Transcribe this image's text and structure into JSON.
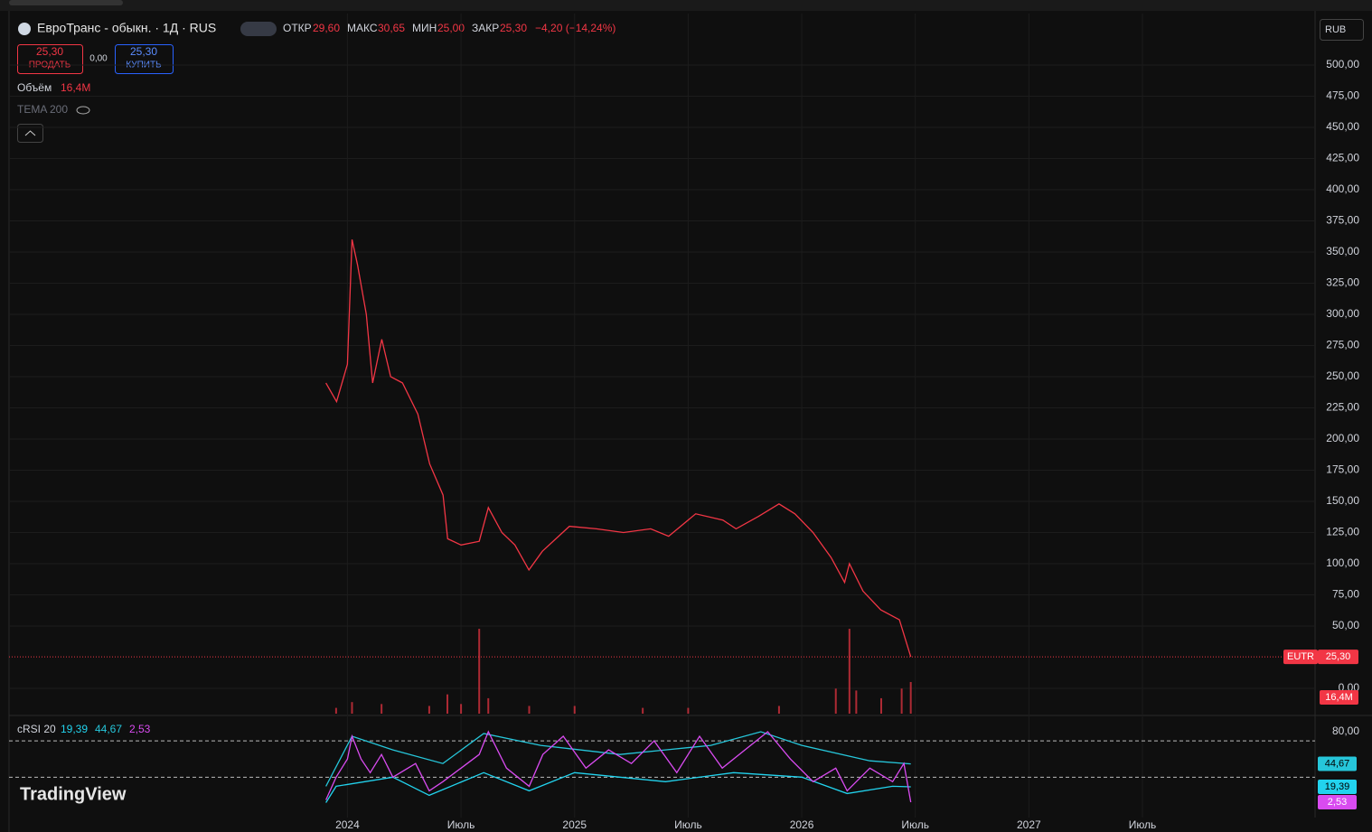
{
  "header": {
    "title": "ЕвроТранс - обыкн. · 1Д · RUS",
    "open_label": "ОТКР",
    "open": "29,60",
    "high_label": "МАКС",
    "high": "30,65",
    "low_label": "МИН",
    "low": "25,00",
    "close_label": "ЗАКР",
    "close": "25,30",
    "change": "−4,20 (−14,24%)"
  },
  "sell": {
    "price": "25,30",
    "label": "ПРОДАТЬ"
  },
  "spread": "0,00",
  "buy": {
    "price": "25,30",
    "label": "КУПИТЬ"
  },
  "currency": "RUB",
  "volume_legend": {
    "label": "Объём",
    "value": "16,4M"
  },
  "tema": "TEMA 200",
  "brand": "TradingView",
  "time_axis": {
    "xlim": [
      2022.51,
      2028.26
    ],
    "xticks": [
      2024,
      {
        "value": 2024.5,
        "label": "Июль"
      },
      2025,
      {
        "value": 2025.5,
        "label": "Июль"
      },
      2026,
      {
        "value": 2026.5,
        "label": "Июль"
      },
      2027,
      {
        "value": 2027.5,
        "label": "Июль"
      }
    ]
  },
  "chart_data": [
    {
      "type": "line",
      "x": [
        2023.905,
        2023.952,
        2024.0,
        2024.02,
        2024.044,
        2024.083,
        2024.111,
        2024.151,
        2024.19,
        2024.242,
        2024.31,
        2024.362,
        2024.421,
        2024.441,
        2024.5,
        2024.58,
        2024.62,
        2024.68,
        2024.737,
        2024.799,
        2024.858,
        2024.977,
        2025.096,
        2025.215,
        2025.335,
        2025.414,
        2025.533,
        2025.653,
        2025.711,
        2025.81,
        2025.9,
        2025.97,
        2026.05,
        2026.129,
        2026.189,
        2026.21,
        2026.27,
        2026.348,
        2026.43,
        2026.48
      ],
      "series": [
        {
          "name": "EUTR",
          "color": "#f23645",
          "values": [
            245,
            230,
            260,
            360,
            340,
            300,
            245,
            280,
            250,
            245,
            220,
            180,
            155,
            120,
            115,
            118,
            145,
            125,
            115,
            95,
            110,
            130,
            128,
            125,
            128,
            122,
            140,
            135,
            128,
            138,
            148,
            140,
            125,
            105,
            85,
            100,
            78,
            63,
            55,
            25.3
          ],
          "value_labels": {
            "39": "25,30"
          }
        }
      ],
      "ylim": [
        0,
        500
      ],
      "yticks": [
        {
          "value": 0,
          "label": "0,00"
        },
        {
          "value": 50,
          "label": "50,00"
        },
        {
          "value": 75,
          "label": "75,00"
        },
        {
          "value": 100,
          "label": "100,00"
        },
        {
          "value": 125,
          "label": "125,00"
        },
        {
          "value": 150,
          "label": "150,00"
        },
        {
          "value": 175,
          "label": "175,00"
        },
        {
          "value": 200,
          "label": "200,00"
        },
        {
          "value": 225,
          "label": "225,00"
        },
        {
          "value": 250,
          "label": "250,00"
        },
        {
          "value": 275,
          "label": "275,00"
        },
        {
          "value": 300,
          "label": "300,00"
        },
        {
          "value": 325,
          "label": "325,00"
        },
        {
          "value": 350,
          "label": "350,00"
        },
        {
          "value": 375,
          "label": "375,00"
        },
        {
          "value": 400,
          "label": "400,00"
        },
        {
          "value": 425,
          "label": "425,00"
        },
        {
          "value": 450,
          "label": "450,00"
        },
        {
          "value": 475,
          "label": "475,00"
        },
        {
          "value": 500,
          "label": "500,00"
        }
      ],
      "grid": true
    },
    {
      "type": "bar",
      "x": [
        2023.95,
        2024.02,
        2024.15,
        2024.36,
        2024.44,
        2024.5,
        2024.58,
        2024.62,
        2024.8,
        2025.0,
        2025.3,
        2025.5,
        2025.9,
        2026.15,
        2026.21,
        2026.24,
        2026.35,
        2026.44,
        2026.48
      ],
      "values": [
        3,
        6,
        5,
        4,
        10,
        5,
        44,
        8,
        4,
        4,
        3,
        3,
        4,
        13,
        44,
        12,
        8,
        13,
        16.4
      ],
      "value_labels": {
        "18": "16,4M"
      },
      "color": "#f23645",
      "ylim": [
        0,
        100
      ]
    },
    {
      "type": "line",
      "title": "cRSI 20",
      "ylim": [
        0,
        80
      ],
      "yticks": [
        {
          "value": 80,
          "label": "80,00"
        }
      ],
      "band_levels": [
        70,
        30
      ],
      "series": [
        {
          "color": "#22d3ee",
          "x": [
            2023.905,
            2023.95,
            2024.2,
            2024.36,
            2024.6,
            2024.8,
            2025.0,
            2025.4,
            2025.7,
            2026.0,
            2026.2,
            2026.4,
            2026.48
          ],
          "values": [
            2,
            20,
            30,
            10,
            35,
            15,
            35,
            25,
            35,
            30,
            12,
            20,
            19.39
          ],
          "value_label": "19,39"
        },
        {
          "color": "#26c6da",
          "x": [
            2023.905,
            2024.02,
            2024.2,
            2024.42,
            2024.6,
            2024.85,
            2025.2,
            2025.4,
            2025.6,
            2025.82,
            2026.0,
            2026.3,
            2026.48
          ],
          "values": [
            20,
            75,
            60,
            45,
            78,
            65,
            55,
            60,
            65,
            80,
            65,
            48,
            44.67
          ],
          "value_label": "44,67"
        },
        {
          "color": "#d94bf0",
          "x": [
            2023.905,
            2023.95,
            2024.0,
            2024.02,
            2024.06,
            2024.1,
            2024.15,
            2024.2,
            2024.3,
            2024.36,
            2024.42,
            2024.5,
            2024.58,
            2024.62,
            2024.7,
            2024.8,
            2024.86,
            2024.95,
            2025.05,
            2025.15,
            2025.25,
            2025.35,
            2025.45,
            2025.55,
            2025.65,
            2025.75,
            2025.85,
            2025.95,
            2026.05,
            2026.15,
            2026.2,
            2026.3,
            2026.4,
            2026.45,
            2026.48
          ],
          "values": [
            5,
            30,
            50,
            75,
            50,
            35,
            55,
            30,
            45,
            15,
            25,
            40,
            55,
            80,
            40,
            20,
            55,
            75,
            40,
            60,
            45,
            70,
            35,
            75,
            40,
            60,
            80,
            50,
            25,
            40,
            15,
            40,
            25,
            45,
            2.53
          ],
          "value_label": "2,53"
        }
      ]
    }
  ]
}
